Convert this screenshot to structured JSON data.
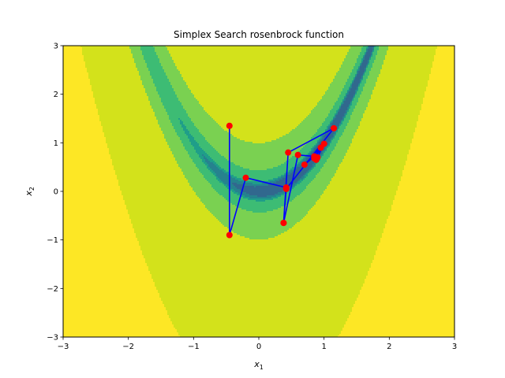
{
  "chart_data": {
    "type": "contour",
    "title": "Simplex Search rosenbrock function",
    "xlabel": "x",
    "xlabel_sub": "1",
    "ylabel": "x",
    "ylabel_sub": "2",
    "xlim": [
      -3,
      3
    ],
    "ylim": [
      -3,
      3
    ],
    "xticks": [
      -3,
      -2,
      -1,
      0,
      1,
      2,
      3
    ],
    "yticks": [
      -3,
      -2,
      -1,
      0,
      1,
      2,
      3
    ],
    "grid": false,
    "contour": {
      "function": "rosenbrock",
      "levels": [
        0,
        2,
        3.5,
        5,
        20,
        100,
        2000
      ],
      "colors": [
        "#31688e",
        "#26828e",
        "#1f9e89",
        "#3dbc74",
        "#7ad151",
        "#d3e21b",
        "#fde725"
      ]
    },
    "path": {
      "line_color": "#0000ff",
      "marker_color": "#ff0000",
      "x": [
        -0.45,
        -0.45,
        -0.2,
        0.42,
        0.38,
        0.45,
        1.15,
        0.42,
        0.38,
        0.6,
        0.85,
        0.7,
        0.95,
        0.85,
        1.0,
        0.9,
        0.88
      ],
      "y": [
        1.35,
        -0.9,
        0.28,
        0.08,
        -0.65,
        0.8,
        1.3,
        0.05,
        -0.65,
        0.75,
        0.72,
        0.55,
        0.9,
        0.68,
        0.98,
        0.7,
        0.65
      ]
    }
  }
}
